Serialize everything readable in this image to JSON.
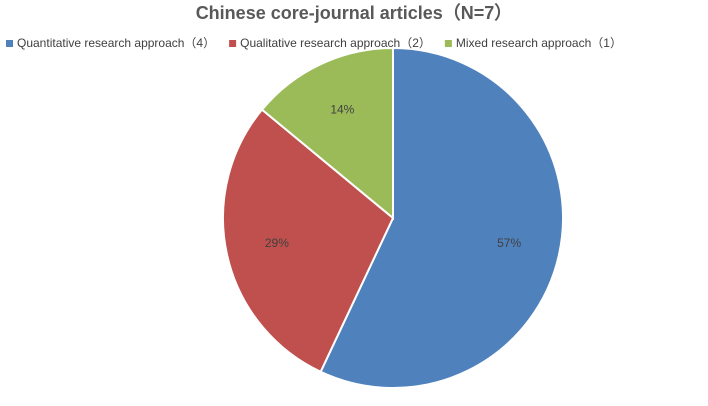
{
  "chart_data": {
    "type": "pie",
    "title": "Chinese core-journal articles（N=7）",
    "categories": [
      "Quantitative research approach（4）",
      "Qualitative research approach（2）",
      "Mixed research approach（1）"
    ],
    "values": [
      57,
      29,
      14
    ],
    "value_labels": [
      "57%",
      "29%",
      "14%"
    ],
    "colors": [
      "#4f81bd",
      "#c0504d",
      "#9bbb59"
    ],
    "legend": "top"
  }
}
